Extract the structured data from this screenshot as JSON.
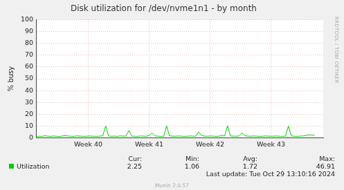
{
  "chart_data": {
    "type": "line",
    "title": "Disk utilization for /dev/nvme1n1 - by month",
    "y_label": "% busy",
    "categories": [
      null,
      null,
      null,
      null,
      null,
      null,
      null,
      null,
      null,
      null,
      null,
      null,
      null,
      null,
      null,
      null,
      null,
      null,
      "Week 40",
      null,
      null,
      null,
      null,
      null,
      null,
      null,
      null,
      null,
      null,
      null,
      null,
      null,
      null,
      null,
      null,
      null,
      null,
      null,
      null,
      "Week 41",
      null,
      null,
      null,
      null,
      null,
      null,
      null,
      null,
      null,
      null,
      null,
      null,
      null,
      null,
      null,
      null,
      null,
      null,
      null,
      null,
      "Week 42",
      null,
      null,
      null,
      null,
      null,
      null,
      null,
      null,
      null,
      null,
      null,
      null,
      null,
      null,
      null,
      null,
      null,
      null,
      null,
      null,
      "Week 43",
      null,
      null,
      null,
      null,
      null,
      null,
      null,
      null,
      null,
      null,
      null,
      null,
      null,
      null,
      null,
      null,
      null,
      null
    ],
    "series": [
      {
        "name": "Utilization",
        "color": "#00cc00",
        "values": [
          1.2,
          1.4,
          1.3,
          1.8,
          1.5,
          1.3,
          1.6,
          1.4,
          1.2,
          1.5,
          2.1,
          1.6,
          1.4,
          1.3,
          1.7,
          1.5,
          1.4,
          1.3,
          1.6,
          1.5,
          1.4,
          1.3,
          1.5,
          1.8,
          10.2,
          1.6,
          1.4,
          1.5,
          1.3,
          1.7,
          1.5,
          1.6,
          6.3,
          1.5,
          1.4,
          1.3,
          1.6,
          1.5,
          1.4,
          2.0,
          4.2,
          1.6,
          1.5,
          1.3,
          1.4,
          10.1,
          1.7,
          1.5,
          1.4,
          1.6,
          1.5,
          1.3,
          1.4,
          1.6,
          1.5,
          1.4,
          5.1,
          2.2,
          1.5,
          1.4,
          1.6,
          1.5,
          1.3,
          1.4,
          2.4,
          1.7,
          10.3,
          1.6,
          1.5,
          1.4,
          1.6,
          4.3,
          1.8,
          1.5,
          1.4,
          1.6,
          1.5,
          1.3,
          1.4,
          1.6,
          1.5,
          1.4,
          1.5,
          1.6,
          1.4,
          1.3,
          1.5,
          10.1,
          1.7,
          1.4,
          1.3,
          1.5,
          1.6,
          2.1,
          2.6,
          2.4,
          2.2,
          null,
          null,
          null
        ],
        "summary": [
          2.25,
          1.06,
          1.72,
          46.91
        ]
      }
    ],
    "summary_headers": [
      "Cur:",
      "Min:",
      "Avg:",
      "Max:"
    ],
    "last_update": "Last update: Tue Oct 29 13:10:16 2024",
    "footer": "Munin 2.0.57",
    "side_text": "RRDTOOL / TOBI OETIKER",
    "ylim": [
      0,
      100
    ],
    "yticks": [
      0,
      10,
      20,
      30,
      40,
      50,
      60,
      70,
      80,
      90,
      100
    ],
    "grid": true
  }
}
